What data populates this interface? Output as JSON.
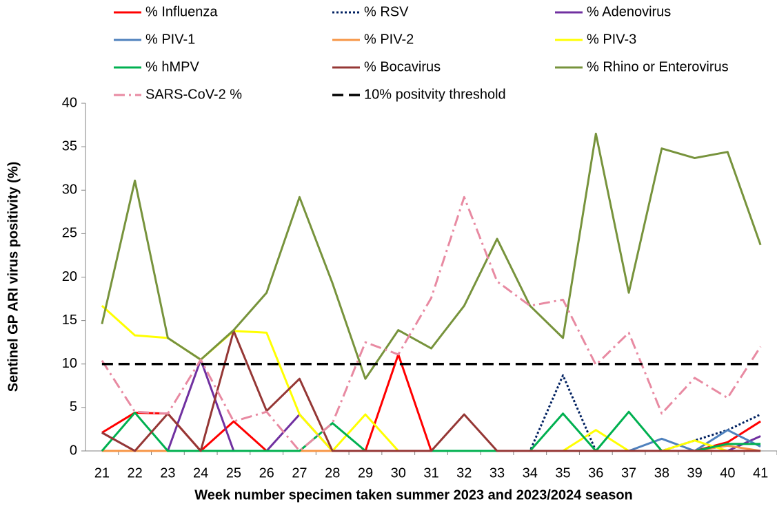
{
  "chart_data": {
    "type": "line",
    "xlabel": "Week number specimen taken summer 2023 and 2023/2024 season",
    "ylabel": "Sentinel GP ARI virus positivity (%)",
    "categories": [
      "21",
      "22",
      "23",
      "24",
      "25",
      "26",
      "27",
      "28",
      "29",
      "30",
      "31",
      "32",
      "33",
      "34",
      "35",
      "36",
      "37",
      "38",
      "39",
      "40",
      "41"
    ],
    "ylim": [
      0,
      40
    ],
    "yticks": [
      0,
      5,
      10,
      15,
      20,
      25,
      30,
      35,
      40
    ],
    "series": [
      {
        "name": "% Influenza",
        "color": "#ff0000",
        "dash": "solid",
        "values": [
          2.1,
          4.4,
          4.3,
          0,
          3.4,
          0,
          0,
          0,
          0,
          11.1,
          0,
          0,
          0,
          0,
          0,
          0,
          0,
          0,
          0,
          1.0,
          3.4
        ]
      },
      {
        "name": "% RSV",
        "color": "#002060",
        "dash": "dot",
        "values": [
          0,
          0,
          0,
          0,
          0,
          0,
          0,
          0,
          0,
          0,
          0,
          0,
          0,
          0,
          8.7,
          0,
          0,
          0,
          1.2,
          2.4,
          4.2
        ]
      },
      {
        "name": "% Adenovirus",
        "color": "#7030a0",
        "dash": "solid",
        "values": [
          2.1,
          0,
          0,
          10.5,
          0,
          0,
          4.2,
          0,
          0,
          0,
          0,
          0,
          0,
          0,
          0,
          0,
          0,
          0,
          0,
          0,
          1.7
        ]
      },
      {
        "name": "% PIV-1",
        "color": "#4f81bd",
        "dash": "solid",
        "values": [
          0,
          0,
          0,
          0,
          0,
          0,
          0,
          0,
          0,
          0,
          0,
          0,
          0,
          0,
          0,
          0,
          0,
          1.4,
          0,
          2.4,
          0.5
        ]
      },
      {
        "name": "% PIV-2",
        "color": "#f79646",
        "dash": "solid",
        "values": [
          0,
          0,
          0,
          0,
          0,
          0,
          0,
          0,
          0,
          0,
          0,
          0,
          0,
          0,
          0,
          0,
          0,
          0,
          0,
          0.6,
          0
        ]
      },
      {
        "name": "% PIV-3",
        "color": "#ffff00",
        "dash": "solid",
        "values": [
          16.7,
          13.3,
          13.0,
          10.5,
          13.8,
          13.6,
          4.2,
          0,
          4.2,
          0,
          0,
          0,
          0,
          0,
          0,
          2.4,
          0,
          0,
          1.2,
          0,
          0
        ]
      },
      {
        "name": "% hMPV",
        "color": "#00b050",
        "dash": "solid",
        "values": [
          0,
          4.4,
          0,
          0,
          0,
          0,
          0,
          3.2,
          0,
          0,
          0,
          0,
          0,
          0,
          4.3,
          0,
          4.5,
          0,
          0,
          0.8,
          0.8
        ]
      },
      {
        "name": "% Bocavirus",
        "color": "#953735",
        "dash": "solid",
        "values": [
          2.1,
          0,
          4.3,
          0,
          13.8,
          4.6,
          8.3,
          0,
          0,
          0,
          0,
          4.2,
          0,
          0,
          0,
          0,
          0,
          0,
          0,
          0,
          0
        ]
      },
      {
        "name": "% Rhino or Enterovirus",
        "color": "#77933c",
        "dash": "solid",
        "values": [
          14.6,
          31.1,
          13.0,
          10.5,
          13.9,
          18.2,
          29.2,
          19.3,
          8.3,
          13.9,
          11.8,
          16.7,
          24.4,
          16.7,
          13.0,
          36.5,
          18.2,
          34.8,
          33.7,
          34.4,
          23.7
        ]
      },
      {
        "name": "SARS-CoV-2 %",
        "color": "#e88aa2",
        "dash": "dashdot",
        "values": [
          10.4,
          4.5,
          4.3,
          10.5,
          3.4,
          4.5,
          0,
          3.2,
          12.5,
          11.1,
          17.6,
          29.2,
          19.5,
          16.7,
          17.4,
          9.9,
          13.6,
          4.3,
          8.4,
          6.1,
          12.0
        ]
      },
      {
        "name": "10% positvity threshold",
        "color": "#000000",
        "dash": "dash",
        "values": [
          10,
          10,
          10,
          10,
          10,
          10,
          10,
          10,
          10,
          10,
          10,
          10,
          10,
          10,
          10,
          10,
          10,
          10,
          10,
          10,
          10
        ]
      }
    ]
  }
}
